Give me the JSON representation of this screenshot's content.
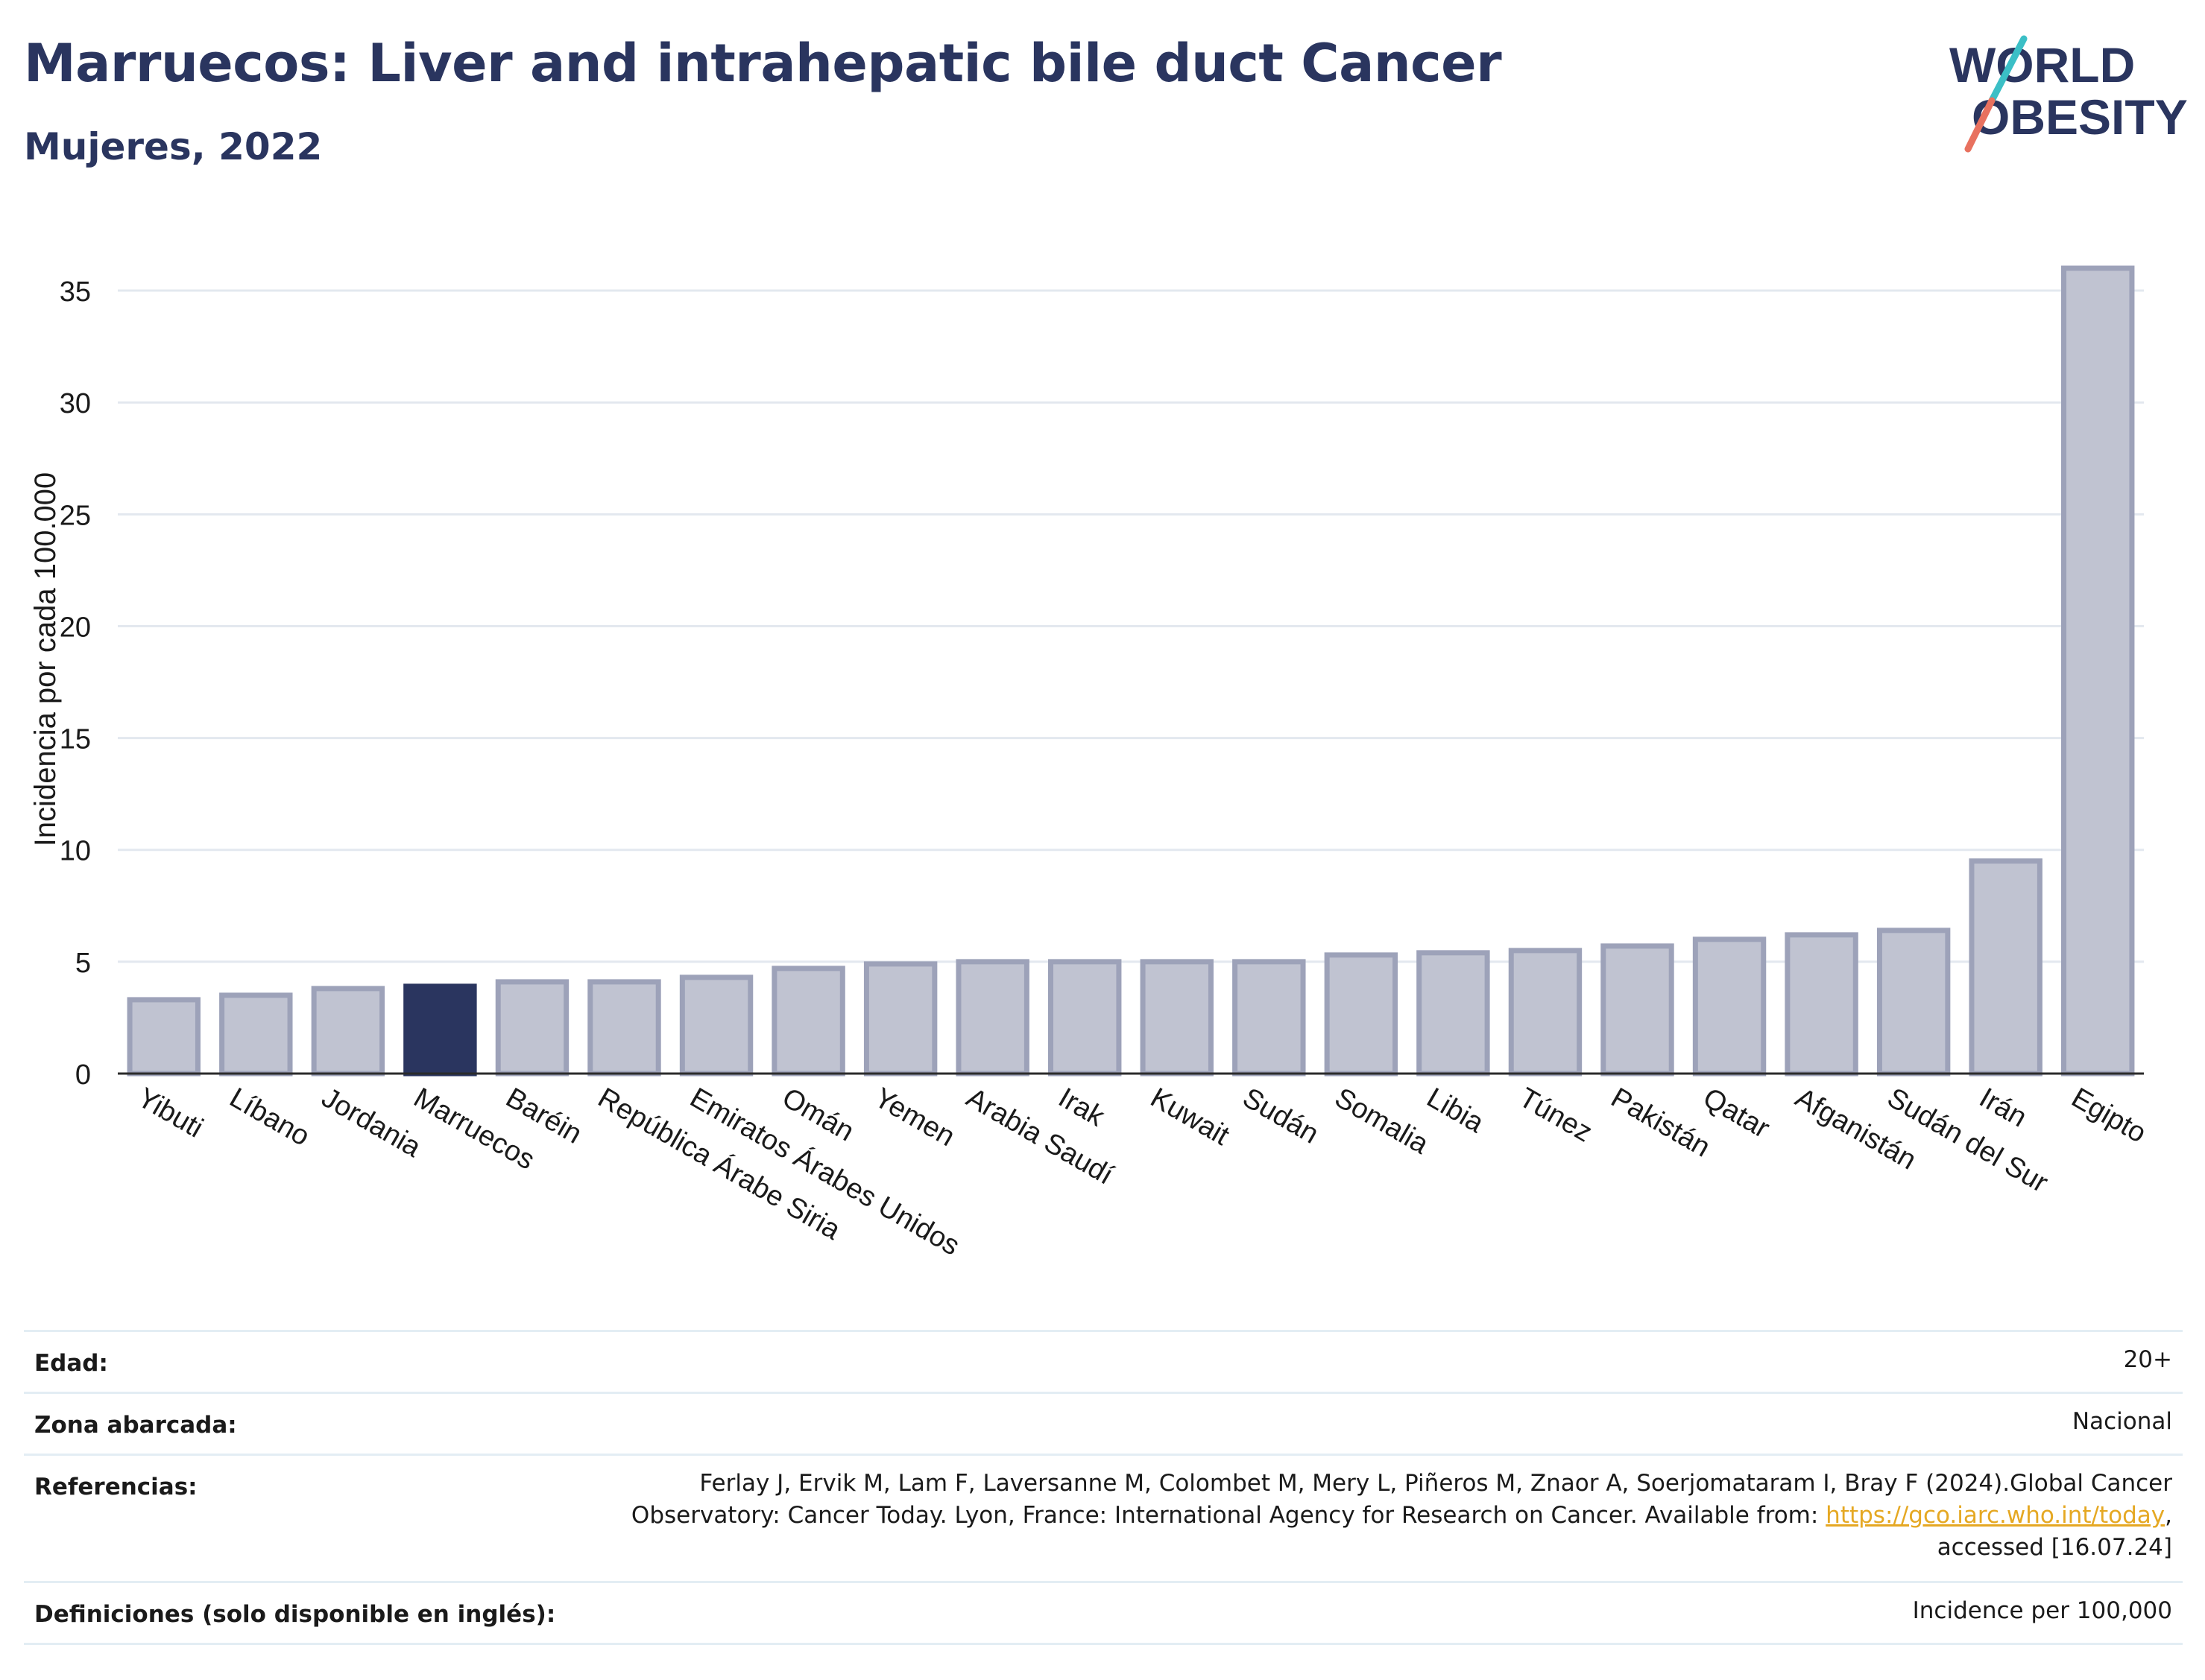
{
  "header": {
    "title": "Marruecos: Liver and intrahepatic bile duct Cancer",
    "subtitle": "Mujeres, 2022"
  },
  "logo": {
    "line1": "WORLD",
    "line2": "OBESITY"
  },
  "colors": {
    "highlight": "#2a355f",
    "bar": "#c0c3d1",
    "bar_stroke": "#9da2b9",
    "grid": "#e3e8ef"
  },
  "chart_data": {
    "type": "bar",
    "title": "Marruecos: Liver and intrahepatic bile duct Cancer",
    "subtitle": "Mujeres, 2022",
    "ylabel": "Incidencia por cada 100.000",
    "xlabel": "",
    "ylim": [
      0,
      37
    ],
    "yticks": [
      0,
      5,
      10,
      15,
      20,
      25,
      30,
      35
    ],
    "grid": true,
    "highlight": "Marruecos",
    "categories": [
      "Yibuti",
      "Líbano",
      "Jordania",
      "Marruecos",
      "Baréin",
      "República Árabe Siria",
      "Emiratos Árabes Unidos",
      "Omán",
      "Yemen",
      "Arabia Saudí",
      "Irak",
      "Kuwait",
      "Sudán",
      "Somalia",
      "Libia",
      "Túnez",
      "Pakistán",
      "Qatar",
      "Afganistán",
      "Sudán del Sur",
      "Irán",
      "Egipto"
    ],
    "values": [
      3.3,
      3.5,
      3.8,
      3.9,
      4.1,
      4.1,
      4.3,
      4.7,
      4.9,
      5.0,
      5.0,
      5.0,
      5.0,
      5.3,
      5.4,
      5.5,
      5.7,
      6.0,
      6.2,
      6.4,
      9.5,
      36.0
    ]
  },
  "info": {
    "age": {
      "label": "Edad:",
      "value": "20+"
    },
    "coverage": {
      "label": "Zona abarcada:",
      "value": "Nacional"
    },
    "references": {
      "label": "Referencias:",
      "line1": "Ferlay J, Ervik M, Lam F, Laversanne M, Colombet M, Mery L, Piñeros M, Znaor A, Soerjomataram I, Bray F (2024).Global Cancer",
      "line2_pre": "Observatory: Cancer Today. Lyon, France: International Agency for Research on Cancer. Available from: ",
      "link": "https://gco.iarc.who.int/today",
      "line2_post": ",",
      "line3": "accessed [16.07.24]"
    },
    "definitions": {
      "label": "Definiciones (solo disponible en inglés):",
      "value": "Incidence per 100,000"
    }
  }
}
